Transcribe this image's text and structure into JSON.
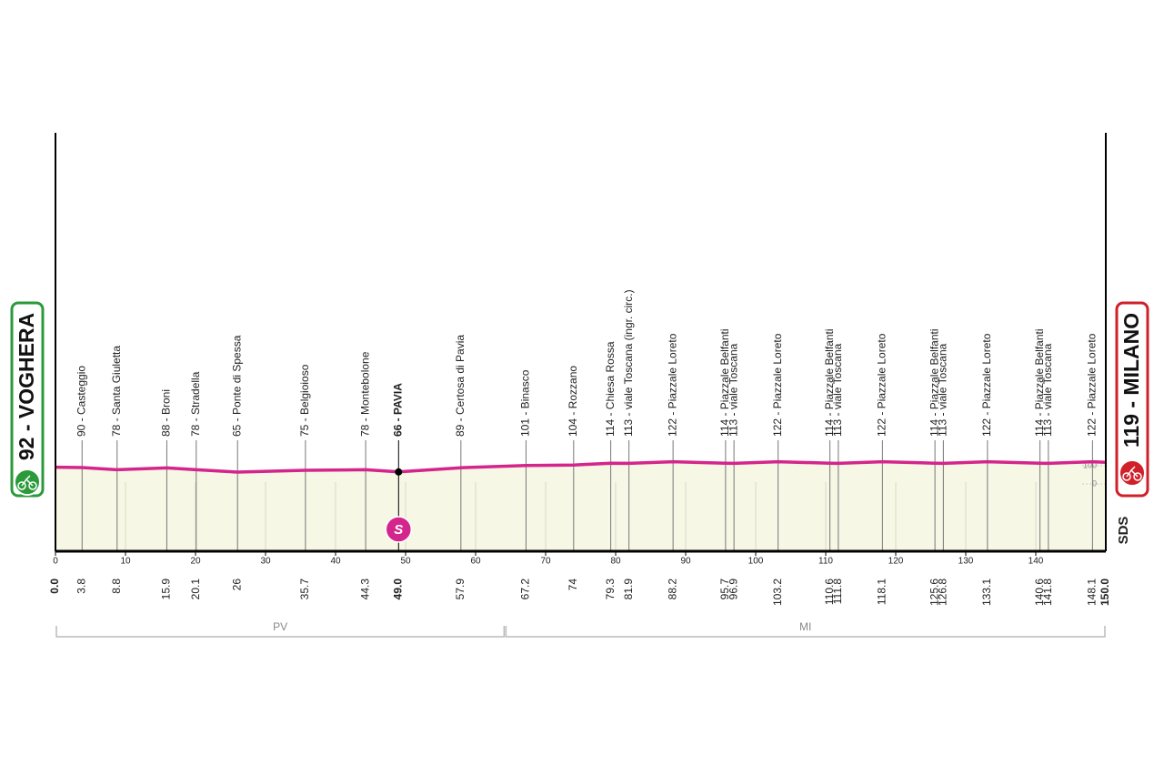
{
  "chart_data": {
    "type": "profile",
    "line_color": "#d4258c",
    "fill_color": "#f7f7e6",
    "start_color": "#2a9a3a",
    "finish_color": "#d0202a",
    "xlim": [
      0,
      150
    ],
    "xticks": [
      0,
      10,
      20,
      30,
      40,
      50,
      60,
      70,
      80,
      90,
      100,
      110,
      120,
      130,
      140
    ],
    "ylim": [
      -370,
      1930
    ],
    "yticks": [
      0,
      100
    ],
    "waypoints": [
      {
        "km": {
          "value": 0,
          "label": "0.0"
        },
        "altitude": 92,
        "label": "92 - VOGHERA"
      },
      {
        "km": 3.8,
        "altitude": 90,
        "label": "90 - Casteggio"
      },
      {
        "km": 8.8,
        "altitude": 78,
        "label": "78 - Santa Giuletta"
      },
      {
        "km": 15.9,
        "altitude": 88,
        "label": "88 - Broni"
      },
      {
        "km": 20.1,
        "altitude": 78,
        "label": "78 - Stradella"
      },
      {
        "km": 26.0,
        "altitude": 65,
        "label": "65 - Ponte di Spessa"
      },
      {
        "km": 35.7,
        "altitude": 75,
        "label": "75 - Belgioioso"
      },
      {
        "km": 44.3,
        "altitude": 78,
        "label": "78 - Montebolone"
      },
      {
        "km": {
          "value": 49,
          "label": "49.0"
        },
        "altitude": 66,
        "label": "66 - PAVIA",
        "bold": true
      },
      {
        "km": 57.9,
        "altitude": 89,
        "label": "89 - Certosa di Pavia"
      },
      {
        "km": 67.2,
        "altitude": 101,
        "label": "101 - Binasco"
      },
      {
        "km": 74.0,
        "altitude": 104,
        "label": "104 - Rozzano"
      },
      {
        "km": 79.3,
        "altitude": 114,
        "label": "114 - Chiesa Rossa"
      },
      {
        "km": 81.9,
        "altitude": 113,
        "label": "113 - viale Toscana (ingr. circ.)"
      },
      {
        "km": 88.2,
        "altitude": 122,
        "label": "122 - Piazzale Loreto"
      },
      {
        "km": 95.7,
        "altitude": 114,
        "label": "114 - Piazzale Belfanti"
      },
      {
        "km": 96.9,
        "altitude": 113,
        "label": "113 - viale Toscana"
      },
      {
        "km": 103.2,
        "altitude": 122,
        "label": "122 - Piazzale Loreto"
      },
      {
        "km": 110.6,
        "altitude": 114,
        "label": "114 - Piazzale Belfanti"
      },
      {
        "km": 111.8,
        "altitude": 113,
        "label": "113 - viale Toscana"
      },
      {
        "km": 118.1,
        "altitude": 122,
        "label": "122 - Piazzale Loreto"
      },
      {
        "km": 125.6,
        "altitude": 114,
        "label": "114 - Piazzale Belfanti"
      },
      {
        "km": 126.8,
        "altitude": 113,
        "label": "113 - viale Toscana"
      },
      {
        "km": 133.1,
        "altitude": 122,
        "label": "122 - Piazzale Loreto"
      },
      {
        "km": 140.6,
        "altitude": 114,
        "label": "114 - Piazzale Belfanti"
      },
      {
        "km": 141.8,
        "altitude": 113,
        "label": "113 - viale Toscana"
      },
      {
        "km": 148.1,
        "altitude": 122,
        "label": "122 - Piazzale Loreto"
      },
      {
        "km": {
          "value": 150,
          "label": "150.0"
        },
        "altitude": 119,
        "label": "119 - MILANO"
      }
    ],
    "sprint": {
      "km": 49,
      "label": "S"
    },
    "provinces": [
      {
        "name": "PV",
        "from": 0,
        "to": 64.2
      },
      {
        "name": "MI",
        "from": 64.2,
        "to": 150
      }
    ],
    "logo": "SDS"
  }
}
